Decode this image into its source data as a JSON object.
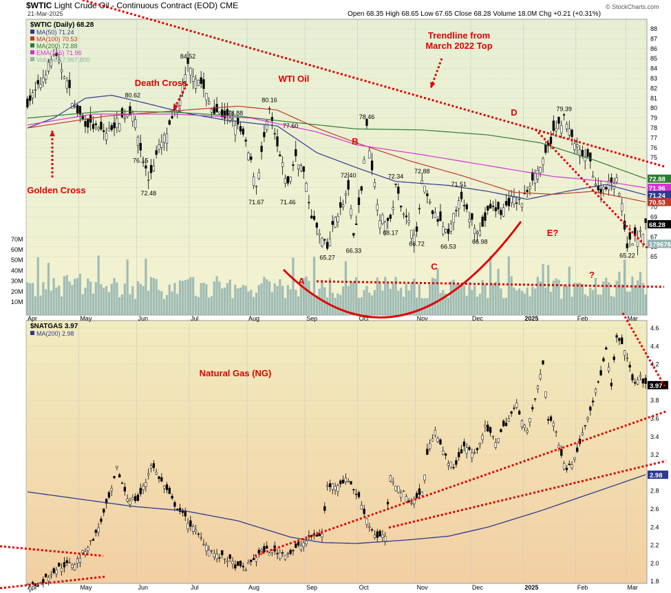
{
  "header": {
    "symbol": "$WTIC",
    "description": "Light Crude Oil - Continuous Contract (EOD)",
    "exchange": "CME",
    "date": "21-Mar-2025",
    "ohlc_line": "Open 68.35  High 68.65  Low 67.65  Close 68.28  Volume 18.0M  Chg +0.21 (+0.31%)",
    "credit": "© StockCharts.com"
  },
  "colors": {
    "oil_bg_top": "#e6efd4",
    "oil_bg_bottom": "#f4f2d0",
    "gas_bg_top": "#f1ecc0",
    "gas_bg_bottom": "#f2cfa2",
    "ma50": "#2c3a8f",
    "ma100": "#c0392b",
    "ma200": "#2e7d32",
    "ema165": "#d433d4",
    "volume": "#8fb3b0",
    "annotation": "#e00000",
    "candle": "#000000"
  },
  "chart_data": [
    {
      "type": "candlestick",
      "panel": "oil",
      "title": "$WTIC (Daily) 68.28",
      "legend": [
        {
          "name": "MA(50)",
          "value": "71.24",
          "color": "#2c3a8f"
        },
        {
          "name": "MA(100)",
          "value": "70.53",
          "color": "#c0392b"
        },
        {
          "name": "MA(200)",
          "value": "72.88",
          "color": "#2e7d32"
        },
        {
          "name": "EMA(165)",
          "value": "71.96",
          "color": "#d433d4"
        },
        {
          "name": "Volume",
          "value": "17,967,800",
          "color": "#8fb3b0"
        }
      ],
      "x_ticks": [
        "Apr",
        "May",
        "Jun",
        "Jul",
        "Aug",
        "Sep",
        "Oct",
        "Nov",
        "Dec",
        "2025",
        "Feb",
        "Mar"
      ],
      "y_ticks": [
        65,
        66,
        67,
        69,
        70,
        71,
        72,
        73,
        75,
        76,
        77,
        78,
        79,
        80,
        81,
        82,
        83,
        84,
        85,
        86,
        87,
        88
      ],
      "ylim": [
        64.5,
        88.5
      ],
      "volume_ticks": [
        "10M",
        "20M",
        "30M",
        "40M",
        "50M",
        "60M",
        "70M"
      ],
      "price_tags": [
        {
          "label": "72.88",
          "value": 72.88,
          "color": "#2e7d32"
        },
        {
          "label": "71.96",
          "value": 71.96,
          "color": "#d433d4"
        },
        {
          "label": "71.24",
          "value": 71.24,
          "color": "#2c3a8f"
        },
        {
          "label": "70.53",
          "value": 70.53,
          "color": "#c0392b"
        },
        {
          "label": "68.28",
          "value": 68.28,
          "color": "#000000"
        },
        {
          "label": "17967800",
          "value": 66.3,
          "color": "#8fb3b0"
        }
      ],
      "swing_labels": [
        {
          "text": "84.52",
          "day": 61,
          "price": 85.0
        },
        {
          "text": "80.62",
          "day": 40,
          "price": 81.1
        },
        {
          "text": "80.16",
          "day": 92,
          "price": 80.6
        },
        {
          "text": "78.88",
          "day": 79,
          "price": 79.3
        },
        {
          "text": "77.60",
          "day": 100,
          "price": 78.0
        },
        {
          "text": "78.46",
          "day": 129,
          "price": 78.9
        },
        {
          "text": "76.15",
          "day": 43,
          "price": 74.5
        },
        {
          "text": "72.48",
          "day": 46,
          "price": 71.2
        },
        {
          "text": "71.67",
          "day": 87,
          "price": 70.3
        },
        {
          "text": "71.46",
          "day": 99,
          "price": 70.3
        },
        {
          "text": "72.40",
          "day": 122,
          "price": 73.0
        },
        {
          "text": "72.34",
          "day": 140,
          "price": 72.9
        },
        {
          "text": "72.88",
          "day": 150,
          "price": 73.4
        },
        {
          "text": "71.51",
          "day": 164,
          "price": 72.1
        },
        {
          "text": "68.17",
          "day": 138,
          "price": 67.2
        },
        {
          "text": "66.33",
          "day": 124,
          "price": 65.4
        },
        {
          "text": "66.72",
          "day": 148,
          "price": 66.1
        },
        {
          "text": "66.53",
          "day": 160,
          "price": 65.8
        },
        {
          "text": "66.98",
          "day": 172,
          "price": 66.3
        },
        {
          "text": "65.27",
          "day": 114,
          "price": 64.7
        },
        {
          "text": "79.39",
          "day": 204,
          "price": 79.7
        },
        {
          "text": "65.22",
          "day": 228,
          "price": 64.9
        }
      ],
      "annotations": {
        "trendline": "Trendline from\nMarch 2022 Top",
        "wti": "WTI Oil",
        "death_cross": "Death Cross",
        "golden_cross": "Golden Cross",
        "a": "A",
        "b": "B",
        "c": "C",
        "d": "D",
        "e": "E?",
        "q": "?"
      },
      "ma_series": {
        "ma50": [
          [
            0,
            78.0
          ],
          [
            10,
            79.0
          ],
          [
            22,
            81.0
          ],
          [
            32,
            81.3
          ],
          [
            45,
            80.5
          ],
          [
            60,
            79.5
          ],
          [
            75,
            78.8
          ],
          [
            95,
            78.2
          ],
          [
            110,
            75.5
          ],
          [
            125,
            74.0
          ],
          [
            140,
            72.6
          ],
          [
            160,
            72.2
          ],
          [
            175,
            71.6
          ],
          [
            190,
            70.8
          ],
          [
            205,
            71.6
          ],
          [
            220,
            72.3
          ],
          [
            235,
            71.24
          ]
        ],
        "ma100": [
          [
            0,
            78.0
          ],
          [
            30,
            79.2
          ],
          [
            60,
            79.8
          ],
          [
            80,
            80.2
          ],
          [
            95,
            79.8
          ],
          [
            110,
            78.0
          ],
          [
            125,
            76.5
          ],
          [
            145,
            74.7
          ],
          [
            165,
            73.2
          ],
          [
            185,
            71.5
          ],
          [
            200,
            71.3
          ],
          [
            215,
            71.6
          ],
          [
            235,
            70.53
          ]
        ],
        "ma200": [
          [
            0,
            79.0
          ],
          [
            30,
            79.7
          ],
          [
            55,
            79.6
          ],
          [
            80,
            79.2
          ],
          [
            100,
            78.6
          ],
          [
            125,
            77.9
          ],
          [
            150,
            77.8
          ],
          [
            175,
            77.3
          ],
          [
            195,
            76.5
          ],
          [
            215,
            74.8
          ],
          [
            235,
            72.88
          ]
        ],
        "ema165": [
          [
            0,
            78.3
          ],
          [
            25,
            79.4
          ],
          [
            55,
            79.4
          ],
          [
            85,
            79.0
          ],
          [
            110,
            77.6
          ],
          [
            125,
            76.3
          ],
          [
            150,
            75.3
          ],
          [
            175,
            74.2
          ],
          [
            200,
            73.1
          ],
          [
            220,
            72.6
          ],
          [
            235,
            71.96
          ]
        ]
      }
    },
    {
      "type": "candlestick",
      "panel": "gas",
      "title": "$NATGAS 3.97",
      "legend": [
        {
          "name": "MA(200)",
          "value": "2.98",
          "color": "#2c3a8f"
        }
      ],
      "x_ticks": [
        "Apr",
        "May",
        "Jun",
        "Jul",
        "Aug",
        "Sep",
        "Oct",
        "Nov",
        "Dec",
        "2025",
        "Feb",
        "Mar"
      ],
      "y_ticks": [
        1.8,
        2.0,
        2.2,
        2.4,
        2.6,
        2.8,
        3.2,
        3.4,
        3.6,
        3.8,
        4.2,
        4.4,
        4.6
      ],
      "ylim": [
        1.68,
        4.66
      ],
      "price_tags": [
        {
          "label": "3.97",
          "value": 3.97,
          "color": "#000000"
        },
        {
          "label": "2.98",
          "value": 2.98,
          "color": "#2c3a8f"
        }
      ],
      "annotations": {
        "title": "Natural Gas (NG)"
      },
      "ma_series": {
        "ma200": [
          [
            0,
            2.79
          ],
          [
            40,
            2.63
          ],
          [
            60,
            2.58
          ],
          [
            80,
            2.47
          ],
          [
            100,
            2.29
          ],
          [
            112,
            2.23
          ],
          [
            125,
            2.22
          ],
          [
            145,
            2.26
          ],
          [
            160,
            2.3
          ],
          [
            175,
            2.4
          ],
          [
            195,
            2.58
          ],
          [
            215,
            2.78
          ],
          [
            235,
            2.98
          ]
        ]
      }
    }
  ]
}
